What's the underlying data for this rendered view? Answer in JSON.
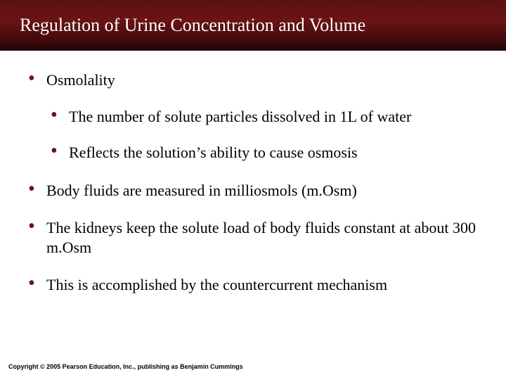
{
  "header": {
    "title": "Regulation of Urine Concentration and Volume"
  },
  "bullets": {
    "b0": "Osmolality",
    "b0_sub0": "The number of solute particles dissolved in 1L of water",
    "b0_sub1": "Reflects the solution’s ability to cause osmosis",
    "b1": "Body fluids are measured in milliosmols (m.Osm)",
    "b2": "The kidneys keep the solute load of body fluids constant at about 300 m.Osm",
    "b3": "This is accomplished by the countercurrent mechanism"
  },
  "footer": {
    "copyright": "Copyright © 2005 Pearson Education, Inc., publishing as Benjamin Cummings"
  },
  "style": {
    "header_bg_top": "#5a1010",
    "header_bg_bottom": "#1a0404",
    "bullet_color": "#6b1414",
    "title_color": "#ffffff",
    "text_color": "#000000",
    "title_fontsize": 26,
    "body_fontsize": 22,
    "footer_fontsize": 9
  }
}
